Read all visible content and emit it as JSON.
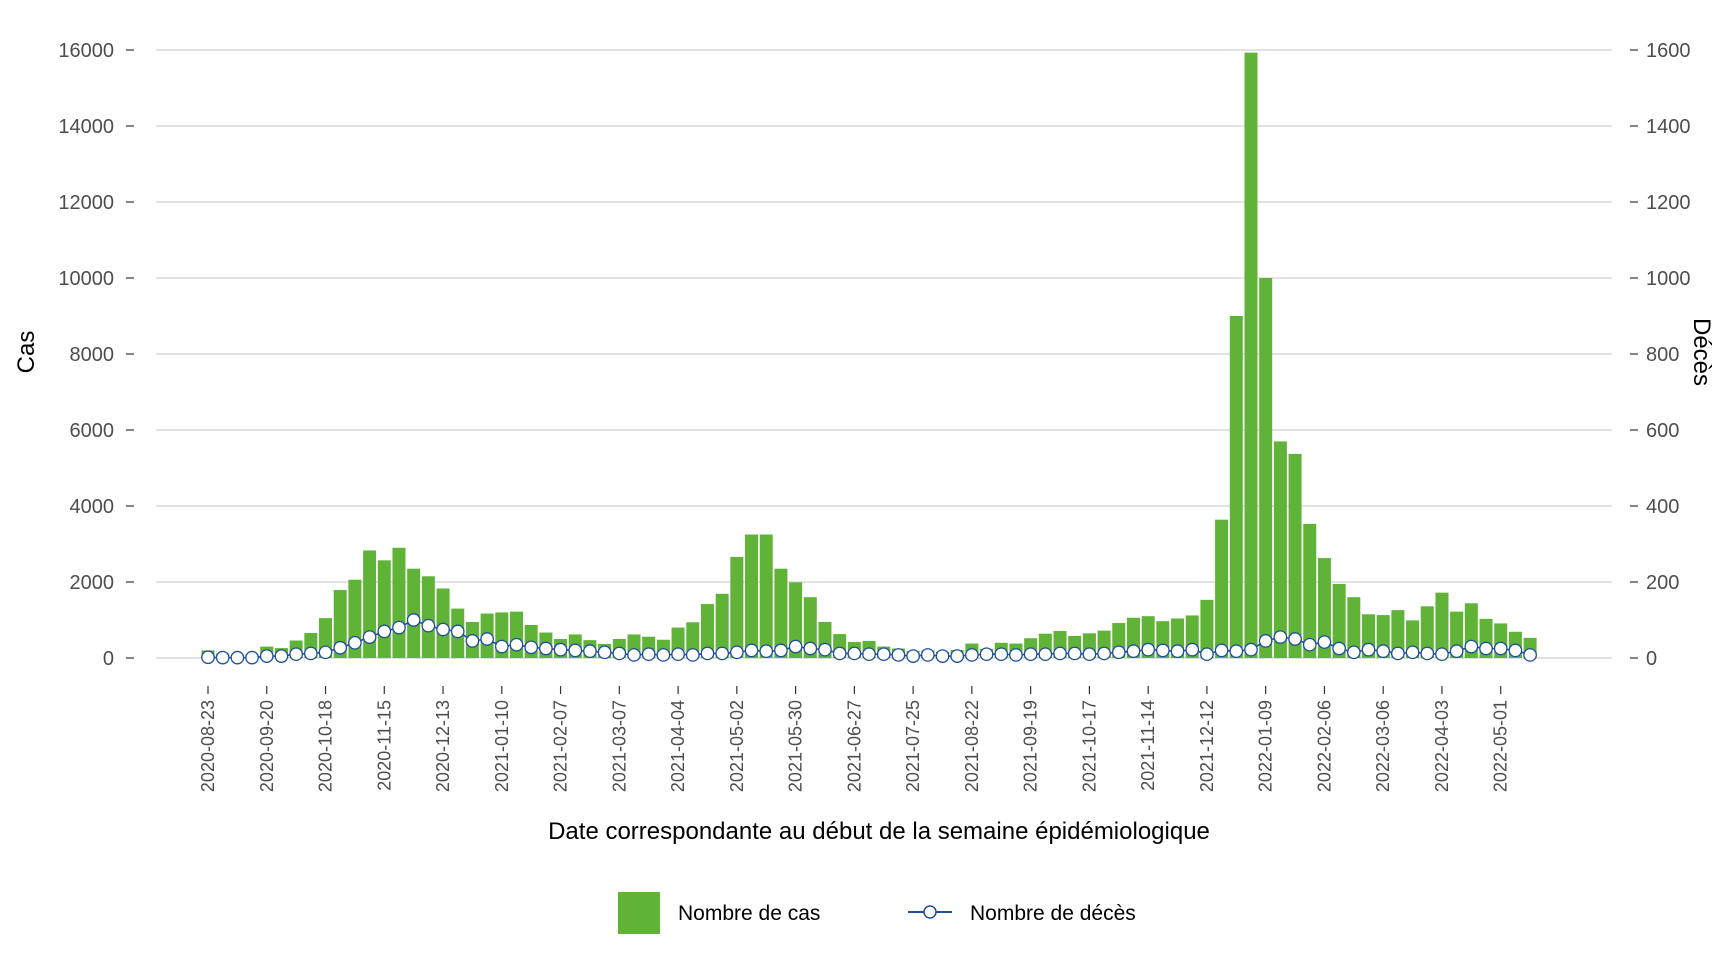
{
  "chart_data": {
    "type": "bar",
    "title": "",
    "xlabel": "Date correspondante au début de la semaine épidémiologique",
    "ylabel": "Cas",
    "y2label": "Décès",
    "ylim": [
      0,
      16000
    ],
    "y2lim": [
      0,
      1600
    ],
    "yticks": [
      0,
      2000,
      4000,
      6000,
      8000,
      10000,
      12000,
      14000,
      16000
    ],
    "y2ticks": [
      0,
      200,
      400,
      600,
      800,
      1000,
      1200,
      1400,
      1600
    ],
    "grid": true,
    "legend_position": "bottom",
    "x_tick_labels": [
      "2020-08-23",
      "2020-09-20",
      "2020-10-18",
      "2020-11-15",
      "2020-12-13",
      "2021-01-10",
      "2021-02-07",
      "2021-03-07",
      "2021-04-04",
      "2021-05-02",
      "2021-05-30",
      "2021-06-27",
      "2021-07-25",
      "2021-08-22",
      "2021-09-19",
      "2021-10-17",
      "2021-11-14",
      "2021-12-12",
      "2022-01-09",
      "2022-02-06",
      "2022-03-06",
      "2022-04-03",
      "2022-05-01"
    ],
    "series": [
      {
        "name": "Nombre de cas",
        "kind": "bar",
        "axis": "left",
        "color": "#5fb336",
        "values": [
          200,
          120,
          80,
          100,
          300,
          260,
          460,
          660,
          1050,
          1790,
          2060,
          2830,
          2570,
          2900,
          2350,
          2150,
          1830,
          1300,
          950,
          1170,
          1200,
          1220,
          870,
          670,
          500,
          620,
          470,
          370,
          500,
          620,
          560,
          480,
          800,
          940,
          1420,
          1690,
          2660,
          3250,
          3250,
          2350,
          1990,
          1600,
          950,
          630,
          420,
          450,
          300,
          250,
          180,
          200,
          160,
          210,
          380,
          240,
          400,
          380,
          520,
          640,
          710,
          580,
          650,
          720,
          920,
          1060,
          1100,
          970,
          1040,
          1120,
          1530,
          3640,
          9000,
          15930,
          10000,
          5700,
          5370,
          3530,
          2630,
          1950,
          1600,
          1150,
          1130,
          1260,
          990,
          1360,
          1720,
          1220,
          1440,
          1030,
          910,
          690,
          530
        ]
      },
      {
        "name": "Nombre de décès",
        "kind": "line",
        "axis": "right",
        "color": "#1f4e9c",
        "values": [
          2,
          1,
          1,
          1,
          5,
          5,
          10,
          12,
          15,
          27,
          40,
          55,
          70,
          80,
          100,
          85,
          75,
          70,
          45,
          50,
          30,
          35,
          28,
          25,
          22,
          20,
          18,
          15,
          12,
          8,
          10,
          8,
          10,
          8,
          12,
          12,
          15,
          20,
          18,
          20,
          30,
          25,
          22,
          12,
          12,
          10,
          10,
          8,
          5,
          8,
          5,
          5,
          8,
          10,
          10,
          8,
          10,
          10,
          12,
          12,
          10,
          12,
          15,
          18,
          22,
          20,
          18,
          22,
          10,
          20,
          18,
          22,
          45,
          55,
          50,
          35,
          42,
          25,
          15,
          22,
          18,
          12,
          15,
          12,
          10,
          18,
          30,
          25,
          25,
          20,
          8
        ]
      }
    ]
  }
}
